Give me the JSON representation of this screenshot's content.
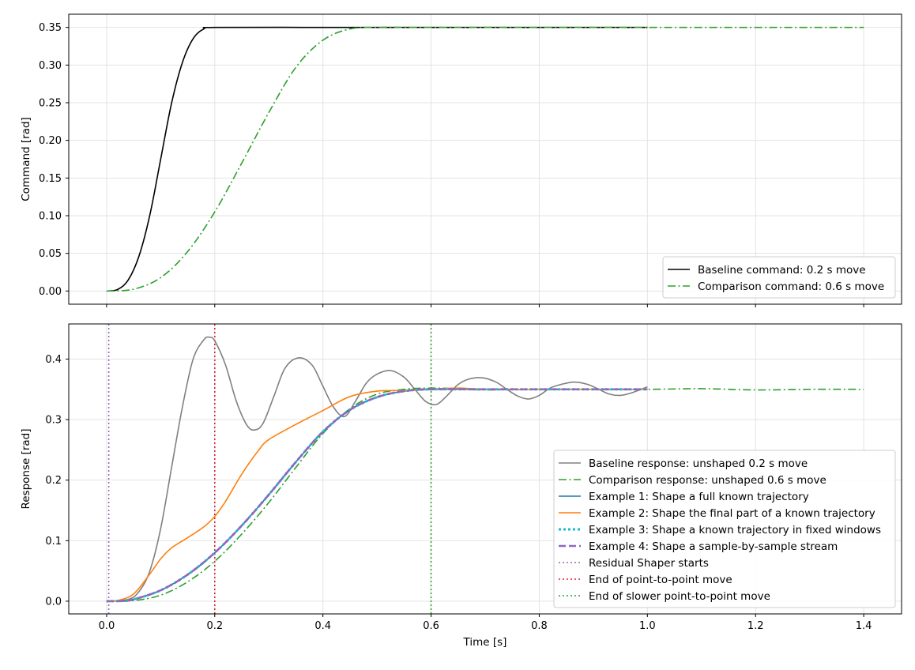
{
  "chart_data": [
    {
      "type": "line",
      "ylabel": "Command [rad]",
      "xlim": [
        -0.07,
        1.47
      ],
      "ylim": [
        -0.0175,
        0.3675
      ],
      "xticks": [
        0.0,
        0.2,
        0.4,
        0.6,
        0.8,
        1.0,
        1.2,
        1.4
      ],
      "yticks": [
        0.0,
        0.05,
        0.1,
        0.15,
        0.2,
        0.25,
        0.3,
        0.35
      ],
      "ytick_labels": [
        "0.00",
        "0.05",
        "0.10",
        "0.15",
        "0.20",
        "0.25",
        "0.30",
        "0.35"
      ],
      "grid": true,
      "legend_position": "lower-right",
      "series": [
        {
          "name": "Baseline command: 0.2 s move",
          "color": "#000000",
          "style": "solid",
          "x": [
            0.0,
            0.02,
            0.04,
            0.06,
            0.08,
            0.1,
            0.12,
            0.14,
            0.16,
            0.18,
            0.2,
            0.4,
            0.6,
            0.8,
            1.0
          ],
          "y": [
            0.0,
            0.0019,
            0.0147,
            0.0466,
            0.101,
            0.175,
            0.249,
            0.303,
            0.335,
            0.348,
            0.35,
            0.35,
            0.35,
            0.35,
            0.35
          ]
        },
        {
          "name": "Comparison command: 0.6 s move",
          "color": "#2ca02c",
          "style": "dashdot",
          "x": [
            0.0,
            0.05,
            0.1,
            0.15,
            0.2,
            0.25,
            0.3,
            0.35,
            0.4,
            0.45,
            0.5,
            0.55,
            0.6,
            0.8,
            1.0,
            1.2,
            1.4
          ],
          "y": [
            0.0,
            0.0024,
            0.0178,
            0.0525,
            0.105,
            0.17,
            0.237,
            0.297,
            0.333,
            0.348,
            0.35,
            0.35,
            0.35,
            0.35,
            0.35,
            0.35,
            0.35
          ]
        }
      ]
    },
    {
      "type": "line",
      "xlabel": "Time [s]",
      "ylabel": "Response [rad]",
      "xlim": [
        -0.07,
        1.47
      ],
      "ylim": [
        -0.021,
        0.458
      ],
      "xticks": [
        0.0,
        0.2,
        0.4,
        0.6,
        0.8,
        1.0,
        1.2,
        1.4
      ],
      "xtick_labels": [
        "0.0",
        "0.2",
        "0.4",
        "0.6",
        "0.8",
        "1.0",
        "1.2",
        "1.4"
      ],
      "yticks": [
        0.0,
        0.1,
        0.2,
        0.3,
        0.4
      ],
      "ytick_labels": [
        "0.0",
        "0.1",
        "0.2",
        "0.3",
        "0.4"
      ],
      "grid": true,
      "legend_position": "lower-right",
      "series": [
        {
          "name": "Baseline response: unshaped 0.2 s move",
          "color": "#808080",
          "style": "solid",
          "x": [
            0.0,
            0.04,
            0.06,
            0.08,
            0.1,
            0.12,
            0.14,
            0.16,
            0.18,
            0.19,
            0.2,
            0.22,
            0.24,
            0.26,
            0.275,
            0.29,
            0.31,
            0.33,
            0.355,
            0.38,
            0.4,
            0.42,
            0.44,
            0.46,
            0.48,
            0.5,
            0.525,
            0.55,
            0.57,
            0.59,
            0.61,
            0.63,
            0.65,
            0.67,
            0.695,
            0.72,
            0.74,
            0.76,
            0.78,
            0.8,
            0.82,
            0.84,
            0.865,
            0.89,
            0.91,
            0.93,
            0.95,
            0.97,
            1.0
          ],
          "y": [
            0.0,
            0.003,
            0.016,
            0.05,
            0.12,
            0.22,
            0.32,
            0.4,
            0.432,
            0.436,
            0.43,
            0.39,
            0.33,
            0.29,
            0.283,
            0.295,
            0.34,
            0.385,
            0.402,
            0.39,
            0.355,
            0.32,
            0.305,
            0.33,
            0.36,
            0.375,
            0.381,
            0.37,
            0.35,
            0.33,
            0.325,
            0.34,
            0.358,
            0.367,
            0.369,
            0.362,
            0.35,
            0.339,
            0.334,
            0.34,
            0.352,
            0.358,
            0.362,
            0.358,
            0.35,
            0.342,
            0.34,
            0.344,
            0.354
          ]
        },
        {
          "name": "Comparison response: unshaped 0.6 s move",
          "color": "#2ca02c",
          "style": "dashdot",
          "x": [
            0.0,
            0.05,
            0.1,
            0.15,
            0.2,
            0.25,
            0.3,
            0.35,
            0.4,
            0.45,
            0.5,
            0.55,
            0.6,
            0.65,
            0.7,
            0.8,
            0.9,
            1.0,
            1.1,
            1.2,
            1.3,
            1.4
          ],
          "y": [
            0.0,
            0.001,
            0.01,
            0.032,
            0.066,
            0.111,
            0.163,
            0.221,
            0.277,
            0.318,
            0.342,
            0.35,
            0.352,
            0.351,
            0.349,
            0.35,
            0.35,
            0.35,
            0.351,
            0.349,
            0.35,
            0.35
          ]
        },
        {
          "name": "Example 1: Shape a full known trajectory",
          "color": "#1f77b4",
          "style": "solid",
          "x": [
            0.0,
            0.03,
            0.05,
            0.1,
            0.15,
            0.2,
            0.25,
            0.3,
            0.35,
            0.4,
            0.45,
            0.5,
            0.55,
            0.6,
            0.7,
            0.8,
            0.9,
            1.0
          ],
          "y": [
            0.0,
            0.0005,
            0.003,
            0.018,
            0.044,
            0.08,
            0.125,
            0.176,
            0.23,
            0.28,
            0.316,
            0.337,
            0.347,
            0.35,
            0.35,
            0.35,
            0.35,
            0.35
          ]
        },
        {
          "name": "Example 2: Shape the final part of a known trajectory",
          "color": "#ff7f0e",
          "style": "solid",
          "x": [
            0.0,
            0.02,
            0.05,
            0.08,
            0.1,
            0.12,
            0.15,
            0.18,
            0.2,
            0.22,
            0.25,
            0.28,
            0.3,
            0.35,
            0.4,
            0.45,
            0.5,
            0.55,
            0.6,
            0.65,
            0.7,
            0.8,
            0.9,
            1.0
          ],
          "y": [
            0.0,
            0.001,
            0.012,
            0.045,
            0.07,
            0.088,
            0.105,
            0.123,
            0.14,
            0.165,
            0.21,
            0.248,
            0.267,
            0.292,
            0.315,
            0.338,
            0.347,
            0.348,
            0.35,
            0.352,
            0.35,
            0.35,
            0.35,
            0.35
          ]
        },
        {
          "name": "Example 3: Shape a known trajectory in fixed windows",
          "color": "#17becf",
          "style": "dotted-thick",
          "x": [
            0.0,
            0.03,
            0.05,
            0.1,
            0.15,
            0.2,
            0.25,
            0.3,
            0.35,
            0.4,
            0.45,
            0.5,
            0.55,
            0.6,
            0.7,
            0.8,
            0.9,
            1.0
          ],
          "y": [
            0.0,
            0.0005,
            0.003,
            0.018,
            0.044,
            0.08,
            0.125,
            0.176,
            0.23,
            0.28,
            0.316,
            0.337,
            0.347,
            0.35,
            0.35,
            0.35,
            0.35,
            0.35
          ]
        },
        {
          "name": "Example 4: Shape a sample-by-sample stream",
          "color": "#9467bd",
          "style": "dashed-thick",
          "x": [
            0.0,
            0.03,
            0.05,
            0.1,
            0.15,
            0.2,
            0.25,
            0.3,
            0.35,
            0.4,
            0.45,
            0.5,
            0.55,
            0.6,
            0.7,
            0.8,
            0.9,
            1.0
          ],
          "y": [
            0.0,
            0.0005,
            0.003,
            0.018,
            0.044,
            0.08,
            0.125,
            0.176,
            0.23,
            0.28,
            0.316,
            0.337,
            0.347,
            0.35,
            0.35,
            0.35,
            0.35,
            0.35
          ]
        }
      ],
      "vlines": [
        {
          "name": "Residual Shaper starts",
          "x": 0.004,
          "color": "#9467bd",
          "style": "dotted"
        },
        {
          "name": "End of point-to-point move",
          "x": 0.2,
          "color": "#d62728",
          "style": "dotted"
        },
        {
          "name": "End of slower point-to-point move",
          "x": 0.6,
          "color": "#2ca02c",
          "style": "dotted"
        }
      ]
    }
  ]
}
